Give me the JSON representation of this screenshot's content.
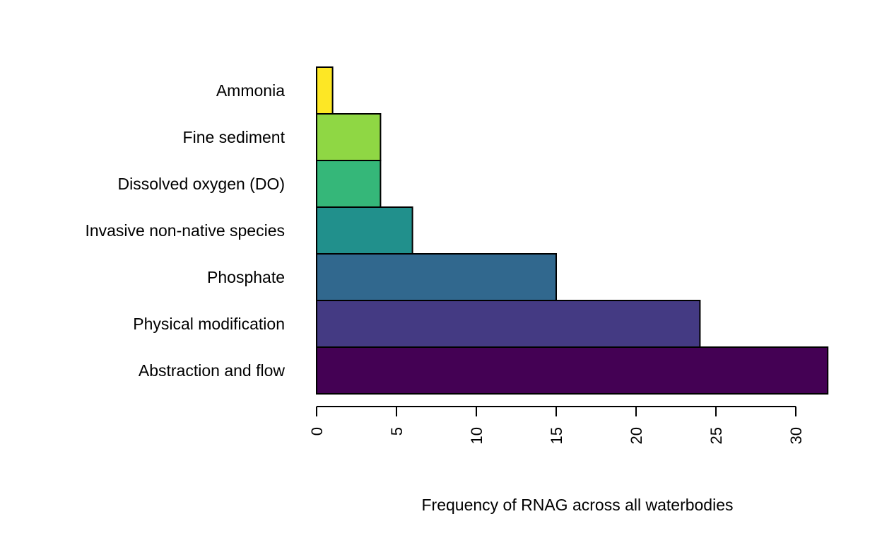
{
  "chart_data": {
    "type": "bar",
    "orientation": "horizontal",
    "categories": [
      "Abstraction and flow",
      "Physical modification",
      "Phosphate",
      "Invasive non-native species",
      "Dissolved oxygen (DO)",
      "Fine sediment",
      "Ammonia"
    ],
    "values": [
      32,
      24,
      15,
      6,
      4,
      4,
      1
    ],
    "colors": [
      "#440154",
      "#443A83",
      "#31688E",
      "#21908C",
      "#35B779",
      "#8FD744",
      "#FDE725"
    ],
    "title": "",
    "xlabel": "Frequency of RNAG across all waterbodies",
    "ylabel": "",
    "xlim": [
      0,
      30
    ],
    "xticks": [
      0,
      5,
      10,
      15,
      20,
      25,
      30
    ],
    "tick_label_rotation": "vertical",
    "grid": false,
    "legend": "none"
  }
}
